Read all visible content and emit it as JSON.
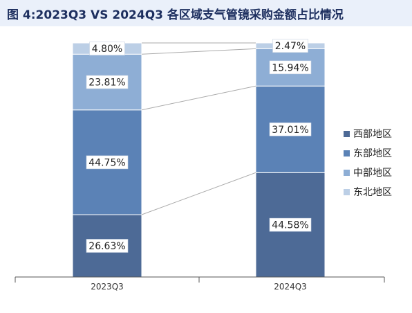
{
  "title": "图 4:2023Q3 VS 2024Q3 各区域支气管镜采购金额占比情况",
  "chart_data": {
    "type": "bar",
    "stacked": true,
    "normalized": true,
    "categories": [
      "2023Q3",
      "2024Q3"
    ],
    "series": [
      {
        "name": "西部地区",
        "values": [
          26.63,
          44.58
        ],
        "labels": [
          "26.63%",
          "44.58%"
        ],
        "color": "#4d6a96"
      },
      {
        "name": "东部地区",
        "values": [
          44.75,
          37.01
        ],
        "labels": [
          "44.75%",
          "37.01%"
        ],
        "color": "#5b82b6"
      },
      {
        "name": "中部地区",
        "values": [
          23.81,
          15.94
        ],
        "labels": [
          "23.81%",
          "15.94%"
        ],
        "color": "#8eaed5"
      },
      {
        "name": "东北地区",
        "values": [
          4.8,
          2.47
        ],
        "labels": [
          "4.80%",
          "2.47%"
        ],
        "color": "#bccfe6"
      }
    ],
    "ylim": [
      0,
      100
    ],
    "legend_position": "right",
    "series_connector_lines": true,
    "grid": false
  }
}
